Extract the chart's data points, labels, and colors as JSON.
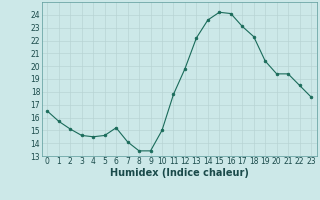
{
  "x": [
    0,
    1,
    2,
    3,
    4,
    5,
    6,
    7,
    8,
    9,
    10,
    11,
    12,
    13,
    14,
    15,
    16,
    17,
    18,
    19,
    20,
    21,
    22,
    23
  ],
  "y": [
    16.5,
    15.7,
    15.1,
    14.6,
    14.5,
    14.6,
    15.2,
    14.1,
    13.4,
    13.4,
    15.0,
    17.8,
    19.8,
    22.2,
    23.6,
    24.2,
    24.1,
    23.1,
    22.3,
    20.4,
    19.4,
    19.4,
    18.5,
    17.6
  ],
  "xlabel": "Humidex (Indice chaleur)",
  "ylim": [
    13,
    25
  ],
  "xlim": [
    -0.5,
    23.5
  ],
  "yticks": [
    13,
    14,
    15,
    16,
    17,
    18,
    19,
    20,
    21,
    22,
    23,
    24
  ],
  "xticks": [
    0,
    1,
    2,
    3,
    4,
    5,
    6,
    7,
    8,
    9,
    10,
    11,
    12,
    13,
    14,
    15,
    16,
    17,
    18,
    19,
    20,
    21,
    22,
    23
  ],
  "xtick_labels": [
    "0",
    "1",
    "2",
    "3",
    "4",
    "5",
    "6",
    "7",
    "8",
    "9",
    "10",
    "11",
    "12",
    "13",
    "14",
    "15",
    "16",
    "17",
    "18",
    "19",
    "20",
    "21",
    "22",
    "23"
  ],
  "line_color": "#1a6b5a",
  "marker_color": "#1a6b5a",
  "bg_color": "#cce8e8",
  "grid_major_color": "#b8d4d4",
  "grid_minor_color": "#c4dcdc",
  "xlabel_fontsize": 7,
  "tick_fontsize": 5.5
}
